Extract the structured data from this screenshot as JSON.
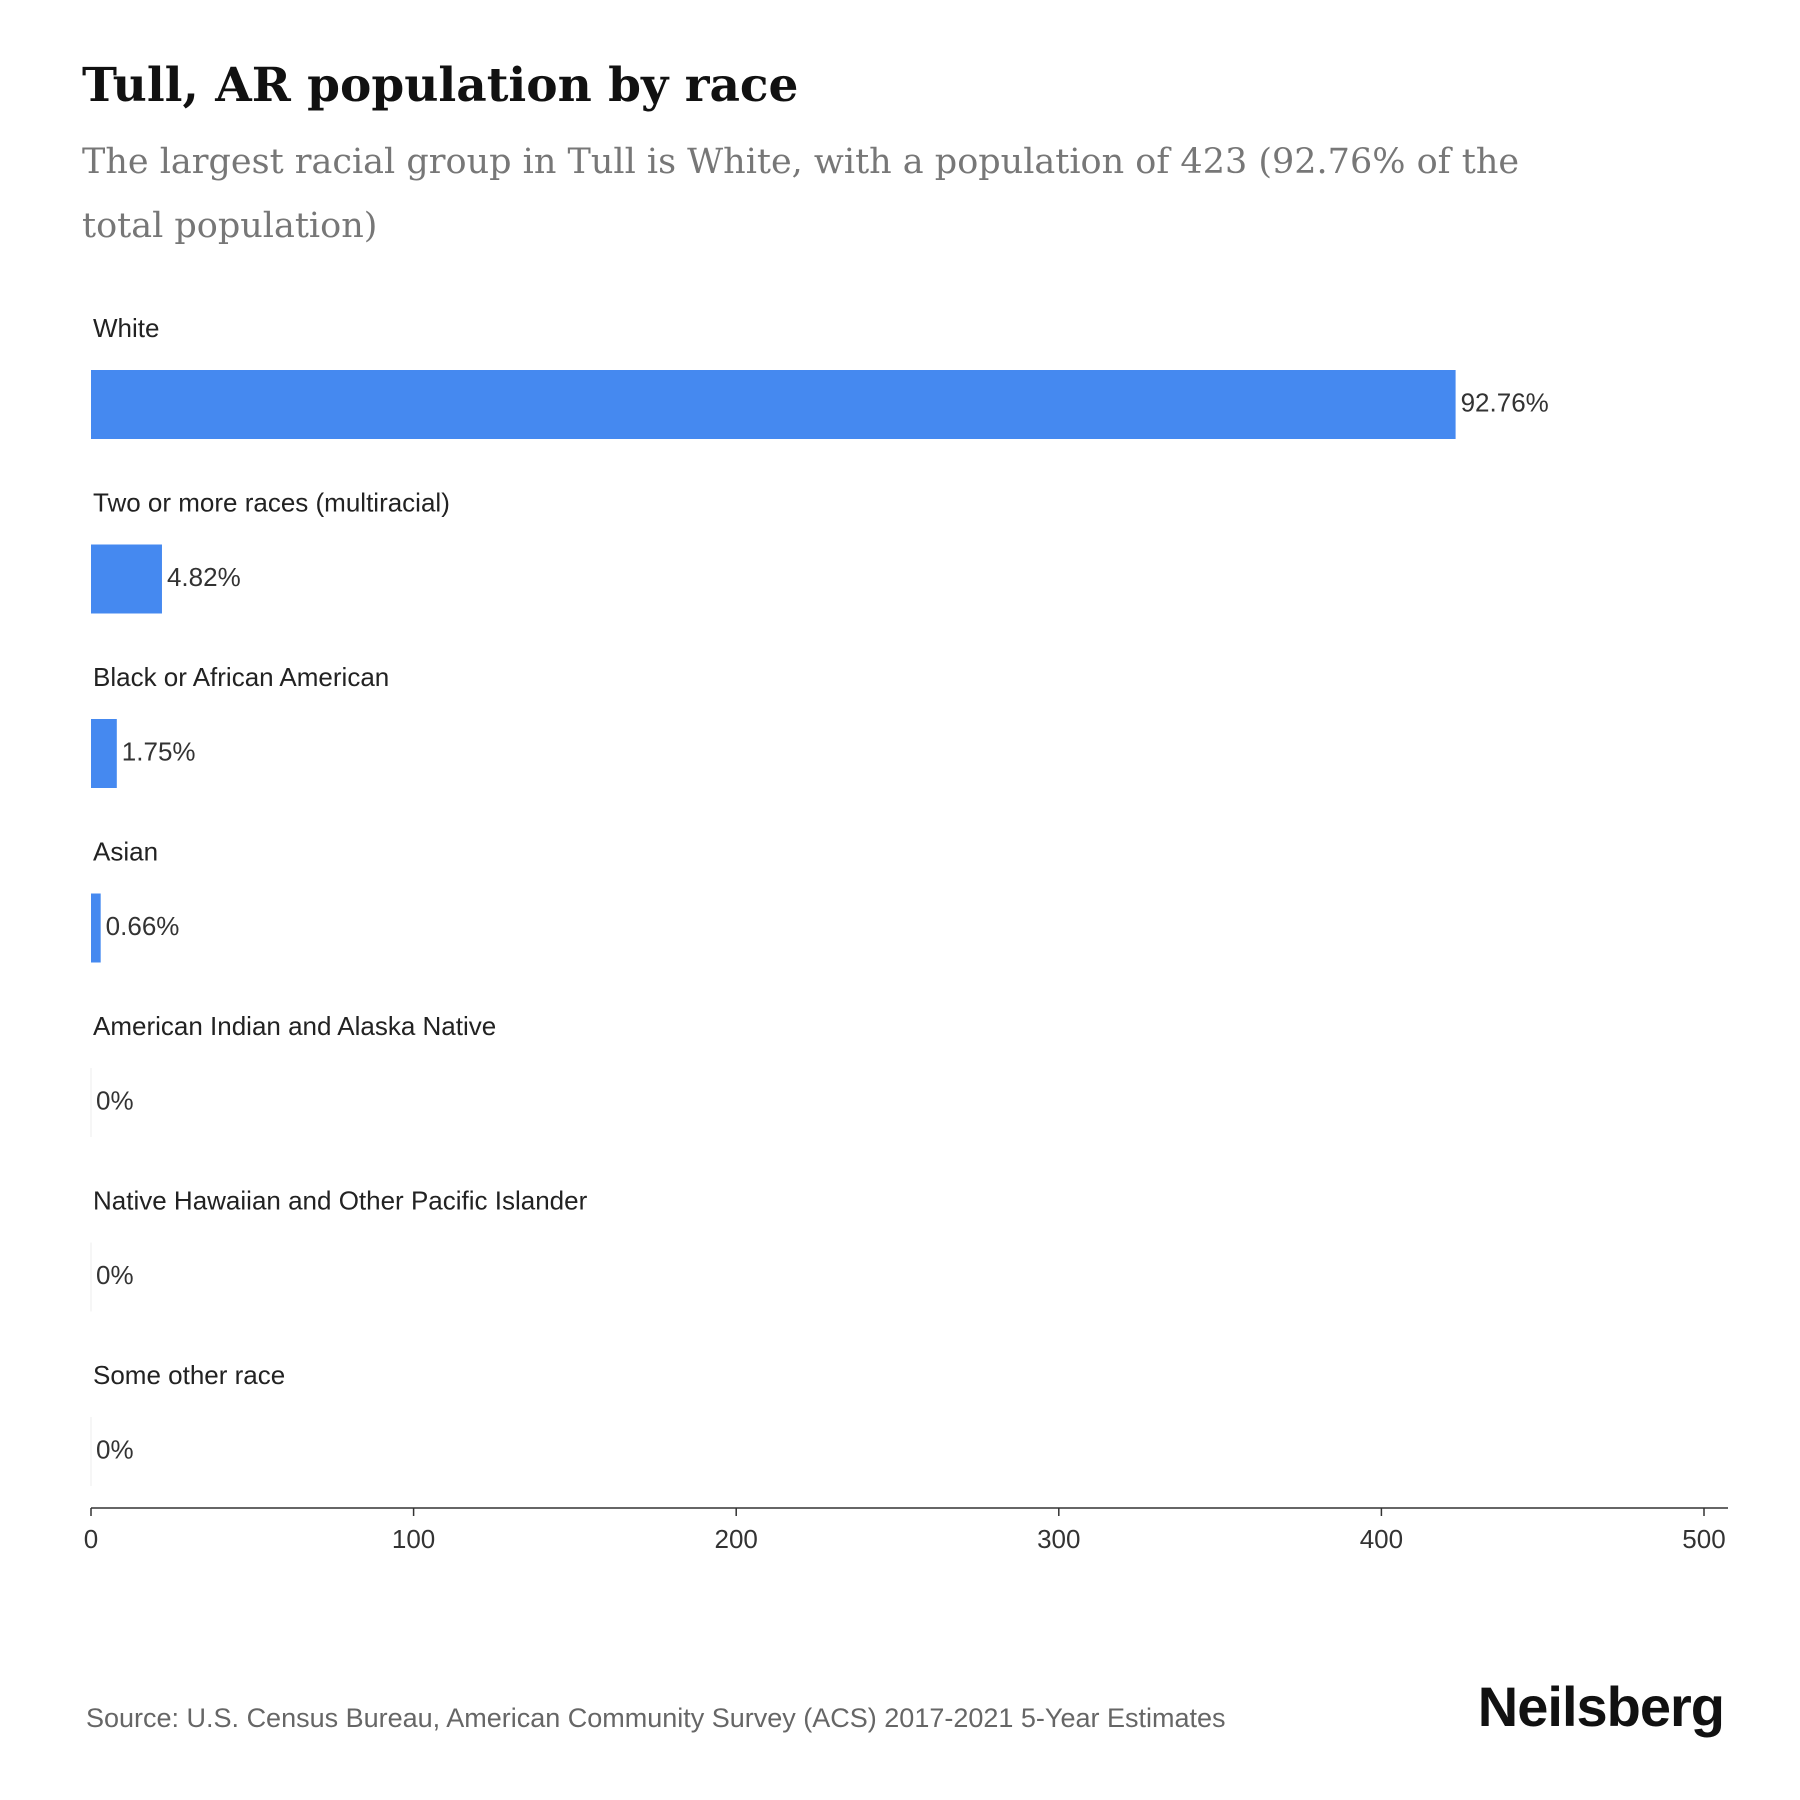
{
  "header": {
    "title": "Tull, AR population by race",
    "subtitle": "The largest racial group in Tull is White, with a population of 423 (92.76% of the total population)"
  },
  "chart_data": {
    "type": "bar",
    "orientation": "horizontal",
    "categories": [
      "White",
      "Two or more races (multiracial)",
      "Black or African American",
      "Asian",
      "American Indian and Alaska Native",
      "Native Hawaiian and Other Pacific Islander",
      "Some other race"
    ],
    "values": [
      423,
      22,
      8,
      3,
      0,
      0,
      0
    ],
    "labels": [
      "92.76%",
      "4.82%",
      "1.75%",
      "0.66%",
      "0%",
      "0%",
      "0%"
    ],
    "xlim": [
      0,
      500
    ],
    "xticks": [
      0,
      100,
      200,
      300,
      400,
      500
    ],
    "bar_color": "#4589F0",
    "grid": false
  },
  "footer": {
    "source": "Source: U.S. Census Bureau, American Community Survey (ACS) 2017-2021 5-Year Estimates",
    "brand": "Neilsberg"
  }
}
